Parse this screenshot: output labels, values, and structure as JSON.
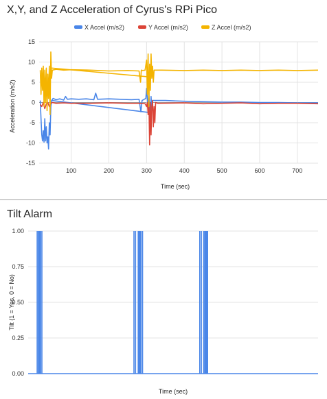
{
  "chart_data": [
    {
      "type": "line",
      "title": "X,Y, and Z Acceleration of Cyrus's RPi Pico",
      "xlabel": "Time (sec)",
      "ylabel": "Acceleration (m/s2)",
      "xlim": [
        15,
        755
      ],
      "ylim": [
        -15,
        15
      ],
      "x_ticks": [
        100,
        200,
        300,
        400,
        500,
        600,
        700
      ],
      "y_ticks": [
        15,
        10,
        5,
        0,
        -5,
        -10,
        -15
      ],
      "grid": true,
      "legend": "top",
      "series": [
        {
          "name": "X Accel (m/s2)",
          "color": "#4a86e8",
          "points": [
            [
              18,
              0.5
            ],
            [
              20,
              -4
            ],
            [
              22,
              -8
            ],
            [
              24,
              -9.5
            ],
            [
              26,
              -7
            ],
            [
              28,
              -9.8
            ],
            [
              30,
              -4
            ],
            [
              32,
              -9.5
            ],
            [
              34,
              -6
            ],
            [
              36,
              -10
            ],
            [
              38,
              -8.5
            ],
            [
              40,
              -11.5
            ],
            [
              42,
              -5
            ],
            [
              44,
              -8
            ],
            [
              46,
              -1
            ],
            [
              48,
              0.5
            ],
            [
              52,
              1
            ],
            [
              60,
              0.7
            ],
            [
              70,
              0.9
            ],
            [
              80,
              0.6
            ],
            [
              85,
              1.5
            ],
            [
              90,
              0.8
            ],
            [
              100,
              0.9
            ],
            [
              120,
              0.8
            ],
            [
              140,
              0.9
            ],
            [
              160,
              0.7
            ],
            [
              165,
              2.3
            ],
            [
              170,
              0.8
            ],
            [
              200,
              0.9
            ],
            [
              230,
              0.8
            ],
            [
              260,
              0.7
            ],
            [
              280,
              0.8
            ],
            [
              285,
              -2.3
            ],
            [
              288,
              0.5
            ],
            [
              298,
              1
            ],
            [
              300,
              3.5
            ],
            [
              302,
              1
            ],
            [
              304,
              -2.5
            ],
            [
              306,
              2.5
            ],
            [
              308,
              -1
            ],
            [
              310,
              -4
            ],
            [
              312,
              1.5
            ],
            [
              314,
              -2
            ],
            [
              316,
              0.5
            ],
            [
              320,
              0.5
            ],
            [
              350,
              0.5
            ],
            [
              400,
              0.3
            ],
            [
              450,
              0.2
            ],
            [
              500,
              0.1
            ],
            [
              550,
              0.1
            ],
            [
              600,
              0
            ],
            [
              650,
              0
            ],
            [
              700,
              -0.1
            ],
            [
              755,
              -0.1
            ]
          ],
          "connector": [
            [
              48,
              0.5
            ],
            [
              310,
              -2.5
            ]
          ]
        },
        {
          "name": "Y Accel (m/s2)",
          "color": "#db4437",
          "points": [
            [
              18,
              -0.5
            ],
            [
              22,
              -1
            ],
            [
              26,
              0
            ],
            [
              30,
              -1.5
            ],
            [
              34,
              -0.3
            ],
            [
              38,
              0
            ],
            [
              42,
              -1
            ],
            [
              46,
              -0.2
            ],
            [
              50,
              0
            ],
            [
              60,
              -0.2
            ],
            [
              80,
              -0.1
            ],
            [
              100,
              -0.2
            ],
            [
              150,
              -0.2
            ],
            [
              200,
              -0.1
            ],
            [
              250,
              -0.2
            ],
            [
              280,
              -0.2
            ],
            [
              296,
              -0.3
            ],
            [
              300,
              -1
            ],
            [
              302,
              0
            ],
            [
              304,
              -3
            ],
            [
              306,
              0.5
            ],
            [
              308,
              -10.5
            ],
            [
              310,
              0
            ],
            [
              312,
              -8
            ],
            [
              314,
              -1
            ],
            [
              316,
              0.5
            ],
            [
              318,
              -6
            ],
            [
              320,
              -1
            ],
            [
              322,
              -5
            ],
            [
              324,
              0
            ],
            [
              330,
              -0.2
            ],
            [
              400,
              -0.1
            ],
            [
              450,
              -0.3
            ],
            [
              500,
              -0.2
            ],
            [
              550,
              -0.1
            ],
            [
              600,
              -0.3
            ],
            [
              650,
              -0.2
            ],
            [
              700,
              -0.2
            ],
            [
              755,
              -0.3
            ]
          ]
        },
        {
          "name": "Z Accel (m/s2)",
          "color": "#f4b400",
          "points": [
            [
              18,
              8
            ],
            [
              20,
              2
            ],
            [
              22,
              8.5
            ],
            [
              24,
              3
            ],
            [
              26,
              9
            ],
            [
              28,
              -1
            ],
            [
              30,
              8
            ],
            [
              32,
              0
            ],
            [
              34,
              8.5
            ],
            [
              36,
              -2
            ],
            [
              38,
              7
            ],
            [
              40,
              1
            ],
            [
              42,
              9
            ],
            [
              44,
              -3
            ],
            [
              46,
              12.5
            ],
            [
              48,
              6
            ],
            [
              50,
              8
            ],
            [
              60,
              8.2
            ],
            [
              80,
              8
            ],
            [
              100,
              8.1
            ],
            [
              150,
              8
            ],
            [
              200,
              7.8
            ],
            [
              250,
              7.9
            ],
            [
              280,
              7.8
            ],
            [
              284,
              5
            ],
            [
              286,
              8
            ],
            [
              290,
              7.9
            ],
            [
              296,
              8
            ],
            [
              300,
              10.5
            ],
            [
              302,
              2
            ],
            [
              304,
              12
            ],
            [
              306,
              -1
            ],
            [
              308,
              9.5
            ],
            [
              310,
              3
            ],
            [
              312,
              12
            ],
            [
              314,
              6
            ],
            [
              316,
              9
            ],
            [
              318,
              5
            ],
            [
              320,
              8
            ],
            [
              340,
              8
            ],
            [
              400,
              7.9
            ],
            [
              450,
              8
            ],
            [
              500,
              7.9
            ],
            [
              550,
              8
            ],
            [
              600,
              7.9
            ],
            [
              650,
              8
            ],
            [
              700,
              7.9
            ],
            [
              755,
              8
            ]
          ],
          "connector": [
            [
              48,
              8.5
            ],
            [
              310,
              6.3
            ]
          ]
        }
      ]
    },
    {
      "type": "line",
      "title": "Tilt Alarm",
      "xlabel": "Time (sec)",
      "ylabel": "Tilt (1 = Yes, 0 = No)",
      "xlim": [
        15,
        755
      ],
      "ylim": [
        0,
        1
      ],
      "y_ticks": [
        "1.00",
        "0.75",
        "0.50",
        "0.25",
        "0.00"
      ],
      "grid": true,
      "series": [
        {
          "name": "",
          "color": "#4a86e8",
          "pulses": [
            [
              38,
              50
            ],
            [
              285,
              289
            ],
            [
              296,
              301
            ],
            [
              303,
              307
            ],
            [
              453,
              457
            ],
            [
              463,
              466
            ],
            [
              468,
              473
            ]
          ]
        }
      ]
    }
  ],
  "legend_items": [
    "X Accel (m/s2)",
    "Y Accel (m/s2)",
    "Z Accel (m/s2)"
  ]
}
